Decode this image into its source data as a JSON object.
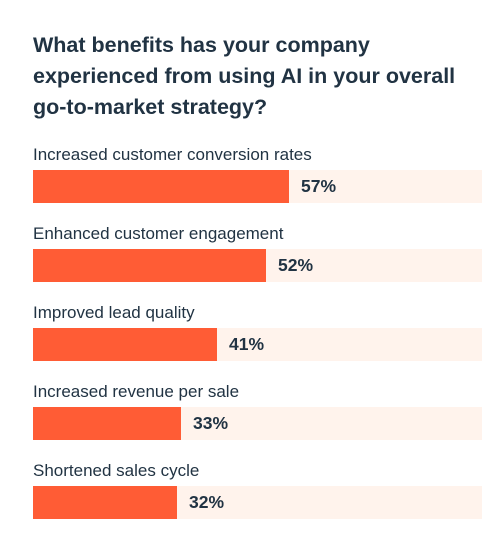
{
  "chart_data": {
    "type": "bar",
    "orientation": "horizontal",
    "title": "What benefits has your company experienced from using AI in your overall go-to-market strategy?",
    "categories": [
      "Increased customer conversion rates",
      "Enhanced customer engagement",
      "Improved lead quality",
      "Increased revenue per sale",
      "Shortened sales cycle"
    ],
    "values": [
      57,
      52,
      41,
      33,
      32
    ],
    "value_labels": [
      "57%",
      "52%",
      "41%",
      "33%",
      "32%"
    ],
    "unit": "%",
    "xlim": [
      0,
      100
    ],
    "grid": false,
    "legend": "none",
    "colors": {
      "bar": "#ff5c35",
      "track": "#fff3ec",
      "text": "#213343"
    }
  }
}
